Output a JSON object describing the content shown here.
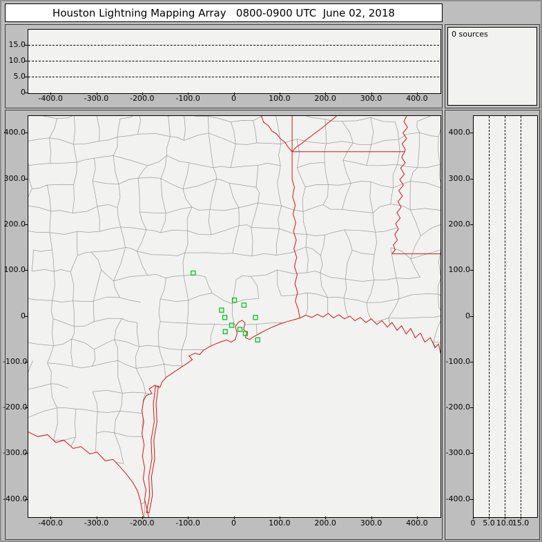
{
  "window": {
    "title": "Houston Lightning Mapping Array   0800-0900 UTC  June 02, 2018"
  },
  "sources_panel": {
    "label": "0 sources"
  },
  "colors": {
    "background_gray": "#bebebe",
    "plot_background": "#f2f2f0",
    "title_background": "#ffffff",
    "state_border_red": "#d41414",
    "county_gray": "#9e9e9e",
    "station_green": "#00c420",
    "dashed_black": "#000000"
  },
  "chart_data": [
    {
      "id": "altitude-vs-east-west",
      "type": "scatter",
      "xlim": [
        -450,
        450
      ],
      "ylim": [
        0,
        20
      ],
      "x_ticks": {
        "values": [
          -400,
          -300,
          -200,
          -100,
          0,
          100,
          200,
          300,
          400
        ],
        "labels": [
          "-400.0",
          "-300.0",
          "-200.0",
          "-100.0",
          "0",
          "100.0",
          "200.0",
          "300.0",
          "400.0"
        ]
      },
      "y_ticks": {
        "values": [
          0,
          5,
          10,
          15
        ],
        "labels": [
          "0",
          "5.0",
          "10.0",
          "15.0"
        ]
      },
      "horizontal_dashed_lines": [
        5,
        10,
        15
      ],
      "points": [],
      "source_count": 0
    },
    {
      "id": "plan-view-map",
      "type": "scatter",
      "xlim": [
        -450,
        450
      ],
      "ylim": [
        -438,
        438
      ],
      "x_ticks": {
        "values": [
          -400,
          -300,
          -200,
          -100,
          0,
          100,
          200,
          300,
          400
        ],
        "labels": [
          "-400.0",
          "-300.0",
          "-200.0",
          "-100.0",
          "0",
          "100.0",
          "200.0",
          "300.0",
          "400.0"
        ]
      },
      "y_ticks": {
        "values": [
          400,
          300,
          200,
          100,
          0,
          -100,
          -200,
          -300,
          -400
        ],
        "labels": [
          "400.0",
          "300.0",
          "200.0",
          "100.0",
          "0",
          "-100.0",
          "-200.0",
          "-300.0",
          "-400.0"
        ]
      },
      "layers": [
        "county-boundaries-gray",
        "state-borders-and-coastline-red"
      ],
      "series": [
        {
          "name": "lma-stations",
          "marker": "open-square",
          "color": "#00c420",
          "points": [
            [
              -90,
              95
            ],
            [
              0,
              36
            ],
            [
              21,
              25
            ],
            [
              -28,
              14
            ],
            [
              -21,
              -2
            ],
            [
              46,
              -2
            ],
            [
              -6,
              -19
            ],
            [
              12,
              -28
            ],
            [
              -20,
              -33
            ],
            [
              24,
              -37
            ],
            [
              51,
              -51
            ]
          ]
        }
      ]
    },
    {
      "id": "altitude-vs-north-south",
      "type": "scatter",
      "xlim": [
        0,
        20
      ],
      "ylim": [
        -438,
        438
      ],
      "x_ticks": {
        "values": [
          0,
          5,
          10,
          15
        ],
        "labels": [
          "0",
          "5.0",
          "10.0",
          "15.0"
        ]
      },
      "y_ticks": {
        "values": [
          400,
          300,
          200,
          100,
          0,
          -100,
          -200,
          -300,
          -400
        ],
        "labels": [
          "400.0",
          "300.0",
          "200.0",
          "100.0",
          "0",
          "-100.0",
          "-200.0",
          "-300.0",
          "-400.0"
        ]
      },
      "vertical_dashed_lines": [
        5,
        10,
        15
      ],
      "points": [],
      "source_count": 0
    }
  ]
}
